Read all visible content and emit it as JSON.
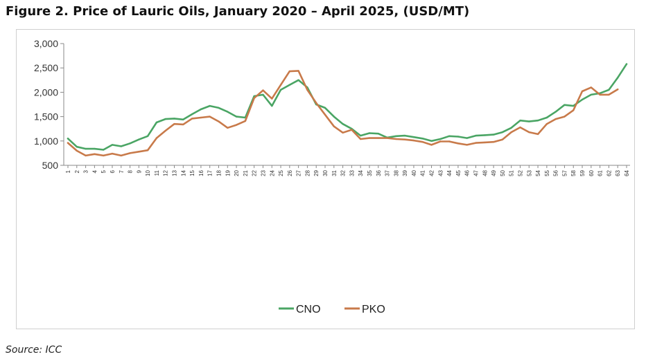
{
  "figure_title": "Figure 2. Price of Lauric Oils, January 2020 – April 2025, (USD/MT)",
  "source_note": "Source: ICC",
  "chart_data": {
    "type": "line",
    "title": "",
    "xlabel": "",
    "ylabel": "",
    "ylim": [
      500,
      3000
    ],
    "yticks": [
      "500",
      "1,000",
      "1,500",
      "2,000",
      "2,500",
      "3,000"
    ],
    "ytick_values": [
      500,
      1000,
      1500,
      2000,
      2500,
      3000
    ],
    "x": [
      "1",
      "2",
      "3",
      "4",
      "5",
      "6",
      "7",
      "8",
      "9",
      "10",
      "11",
      "12",
      "13",
      "14",
      "15",
      "16",
      "17",
      "18",
      "19",
      "20",
      "21",
      "22",
      "23",
      "24",
      "25",
      "26",
      "27",
      "28",
      "29",
      "30",
      "31",
      "32",
      "33",
      "34",
      "35",
      "36",
      "37",
      "38",
      "39",
      "40",
      "41",
      "42",
      "43",
      "44",
      "45",
      "46",
      "47",
      "48",
      "49",
      "50",
      "51",
      "52",
      "53",
      "54",
      "55",
      "56",
      "57",
      "58",
      "59",
      "60",
      "61",
      "62",
      "63",
      "64"
    ],
    "legend_position": "bottom",
    "grid": false,
    "series": [
      {
        "name": "CNO",
        "color": "#4aa564",
        "values": [
          1050,
          880,
          840,
          840,
          820,
          920,
          890,
          950,
          1030,
          1100,
          1380,
          1450,
          1460,
          1440,
          1550,
          1650,
          1720,
          1680,
          1600,
          1500,
          1480,
          1920,
          1950,
          1720,
          2050,
          2150,
          2250,
          2100,
          1750,
          1680,
          1500,
          1350,
          1250,
          1110,
          1160,
          1150,
          1070,
          1100,
          1110,
          1080,
          1050,
          1000,
          1040,
          1100,
          1090,
          1060,
          1110,
          1120,
          1130,
          1180,
          1270,
          1420,
          1400,
          1420,
          1480,
          1600,
          1740,
          1720,
          1850,
          1950,
          1980,
          2050,
          2300,
          2580
        ]
      },
      {
        "name": "PKO",
        "color": "#c87a4a",
        "values": [
          960,
          800,
          700,
          730,
          700,
          740,
          700,
          750,
          780,
          810,
          1060,
          1210,
          1350,
          1340,
          1460,
          1480,
          1500,
          1400,
          1270,
          1330,
          1410,
          1880,
          2040,
          1870,
          2150,
          2430,
          2440,
          2050,
          1780,
          1540,
          1300,
          1170,
          1230,
          1040,
          1060,
          1060,
          1060,
          1040,
          1030,
          1010,
          980,
          920,
          990,
          990,
          950,
          920,
          960,
          970,
          980,
          1030,
          1180,
          1280,
          1180,
          1140,
          1350,
          1450,
          1500,
          1630,
          2020,
          2100,
          1950,
          1950,
          2060,
          null
        ]
      }
    ]
  }
}
